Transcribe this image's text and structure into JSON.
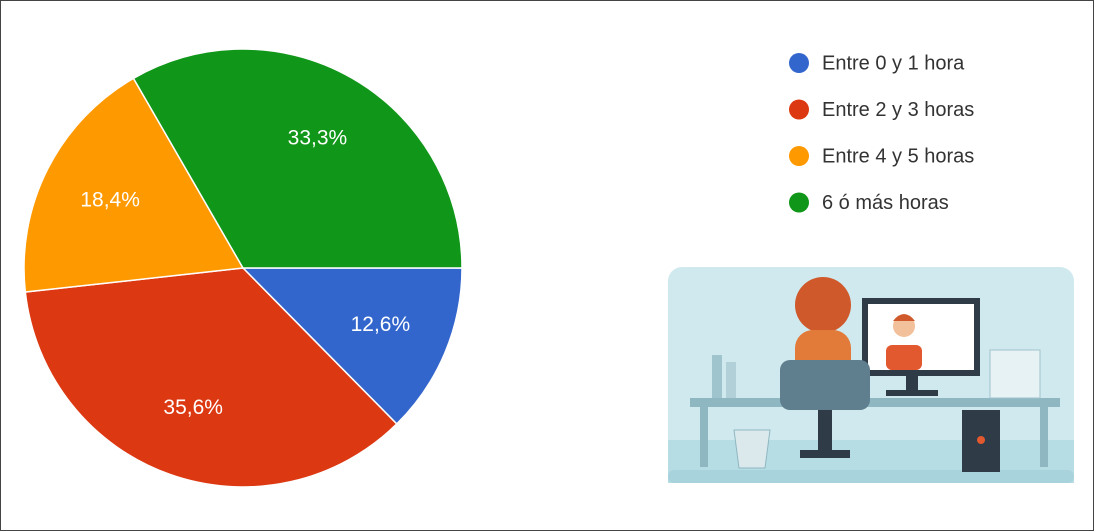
{
  "chart_data": {
    "type": "pie",
    "categories": [
      "Entre 0 y 1 hora",
      "Entre 2 y 3 horas",
      "Entre 4 y 5 horas",
      "6 ó más horas"
    ],
    "values": [
      12.6,
      35.6,
      18.4,
      33.3
    ],
    "value_labels": [
      "12,6%",
      "35,6%",
      "18,4%",
      "33,3%"
    ],
    "colors": [
      "#3366cc",
      "#dc3912",
      "#ff9900",
      "#109618"
    ],
    "legend": "top-right"
  }
}
